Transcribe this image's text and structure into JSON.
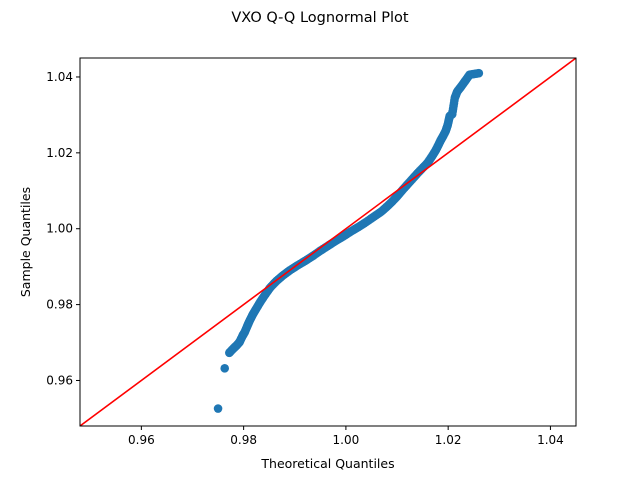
{
  "chart_data": {
    "type": "scatter",
    "title": "VXO Q-Q Lognormal Plot",
    "xlabel": "Theoretical Quantiles",
    "ylabel": "Sample Quantiles",
    "xlim": [
      0.948,
      1.045
    ],
    "ylim": [
      0.948,
      1.045
    ],
    "xticks": [
      0.96,
      0.98,
      1.0,
      1.02,
      1.04
    ],
    "yticks": [
      0.96,
      0.98,
      1.0,
      1.02,
      1.04
    ],
    "xtick_labels": [
      "0.96",
      "0.98",
      "1.00",
      "1.02",
      "1.04"
    ],
    "ytick_labels": [
      "0.96",
      "0.98",
      "1.00",
      "1.02",
      "1.04"
    ],
    "grid": false,
    "points_color": "#1f77b4",
    "reference_line": {
      "slope": 1,
      "intercept": 0,
      "color": "#ff0000"
    },
    "points": {
      "x": [
        0.975,
        0.9763,
        0.9772,
        0.9779,
        0.9786,
        0.9792,
        0.9798,
        0.9802,
        0.9807,
        0.9812,
        0.9818,
        0.9825,
        0.9833,
        0.9842,
        0.9852,
        0.9864,
        0.9877,
        0.989,
        0.9905,
        0.992,
        0.9935,
        0.995,
        0.9965,
        0.998,
        0.9995,
        1.001,
        1.0025,
        1.004,
        1.0055,
        1.007,
        1.008,
        1.009,
        1.01,
        1.011,
        1.012,
        1.013,
        1.014,
        1.015,
        1.016,
        1.0168,
        1.0175,
        1.018,
        1.0185,
        1.019,
        1.0195,
        1.0199,
        1.0203,
        1.0208,
        1.0213,
        1.0218,
        1.0225,
        1.0233,
        1.0242,
        1.026
      ],
      "y": [
        0.9526,
        0.9632,
        0.9673,
        0.9683,
        0.9692,
        0.9701,
        0.9718,
        0.9727,
        0.9743,
        0.9758,
        0.9774,
        0.979,
        0.9808,
        0.9826,
        0.9845,
        0.9862,
        0.9877,
        0.989,
        0.9903,
        0.9915,
        0.9928,
        0.9942,
        0.9955,
        0.9968,
        0.998,
        0.9993,
        1.0005,
        1.0018,
        1.0032,
        1.0046,
        1.0058,
        1.0071,
        1.0085,
        1.0101,
        1.0116,
        1.0131,
        1.0146,
        1.016,
        1.0174,
        1.019,
        1.0205,
        1.0218,
        1.0232,
        1.0244,
        1.0257,
        1.0273,
        1.0297,
        1.0302,
        1.0345,
        1.0362,
        1.0374,
        1.0389,
        1.0406,
        1.041
      ]
    }
  }
}
